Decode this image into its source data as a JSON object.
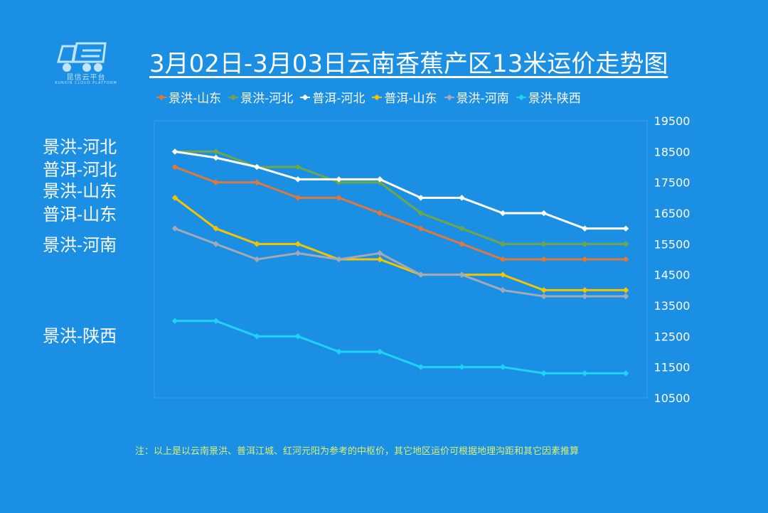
{
  "logo": {
    "text": "昆信云平台",
    "subtitle": "KUNXIN CLOUD PLATFORM"
  },
  "chart_data": {
    "type": "line",
    "title": "3月02日-3月03日云南香蕉产区13米运价走势图",
    "xlabel": "",
    "ylabel": "",
    "ylim": [
      10500,
      19500
    ],
    "yticks": [
      19500,
      18500,
      17500,
      16500,
      15500,
      14500,
      13500,
      12500,
      11500,
      10500
    ],
    "y_axis_position": "right",
    "grid": false,
    "legend_position": "top",
    "x": [
      1,
      2,
      3,
      4,
      5,
      6,
      7,
      8,
      9,
      10,
      11,
      12
    ],
    "series": [
      {
        "name": "景洪-山东",
        "color": "#e0783c",
        "values": [
          18000,
          17500,
          17500,
          17000,
          17000,
          16500,
          16000,
          15500,
          15000,
          15000,
          15000,
          15000
        ]
      },
      {
        "name": "景洪-河北",
        "color": "#6fa64a",
        "values": [
          18500,
          18500,
          18000,
          18000,
          17500,
          17500,
          16500,
          16000,
          15500,
          15500,
          15500,
          15500
        ]
      },
      {
        "name": "普洱-河北",
        "color": "#ffffff",
        "values": [
          18500,
          18300,
          18000,
          17600,
          17600,
          17600,
          17000,
          17000,
          16500,
          16500,
          16000,
          16000
        ]
      },
      {
        "name": "普洱-山东",
        "color": "#f5c400",
        "values": [
          17000,
          16000,
          15500,
          15500,
          15000,
          15000,
          14500,
          14500,
          14500,
          14000,
          14000,
          14000
        ]
      },
      {
        "name": "景洪-河南",
        "color": "#a3a9b5",
        "values": [
          16000,
          15500,
          15000,
          15200,
          15000,
          15200,
          14500,
          14500,
          14000,
          13800,
          13800,
          13800
        ]
      },
      {
        "name": "景洪-陕西",
        "color": "#1fd3f5",
        "values": [
          13000,
          13000,
          12500,
          12500,
          12000,
          12000,
          11500,
          11500,
          11500,
          11300,
          11300,
          11300
        ]
      }
    ]
  },
  "left_labels": [
    {
      "text": "景洪-河北",
      "value": 18750
    },
    {
      "text": "普洱-河北",
      "value": 18000
    },
    {
      "text": "景洪-山东",
      "value": 17300
    },
    {
      "text": "普洱-山东",
      "value": 16550
    },
    {
      "text": "景洪-河南",
      "value": 15550
    },
    {
      "text": "景洪-陕西",
      "value": 12600
    }
  ],
  "note": "注：以上是以云南景洪、普洱江城、红河元阳为参考的中枢价，其它地区运价可根据地理沟距和其它因素推算"
}
